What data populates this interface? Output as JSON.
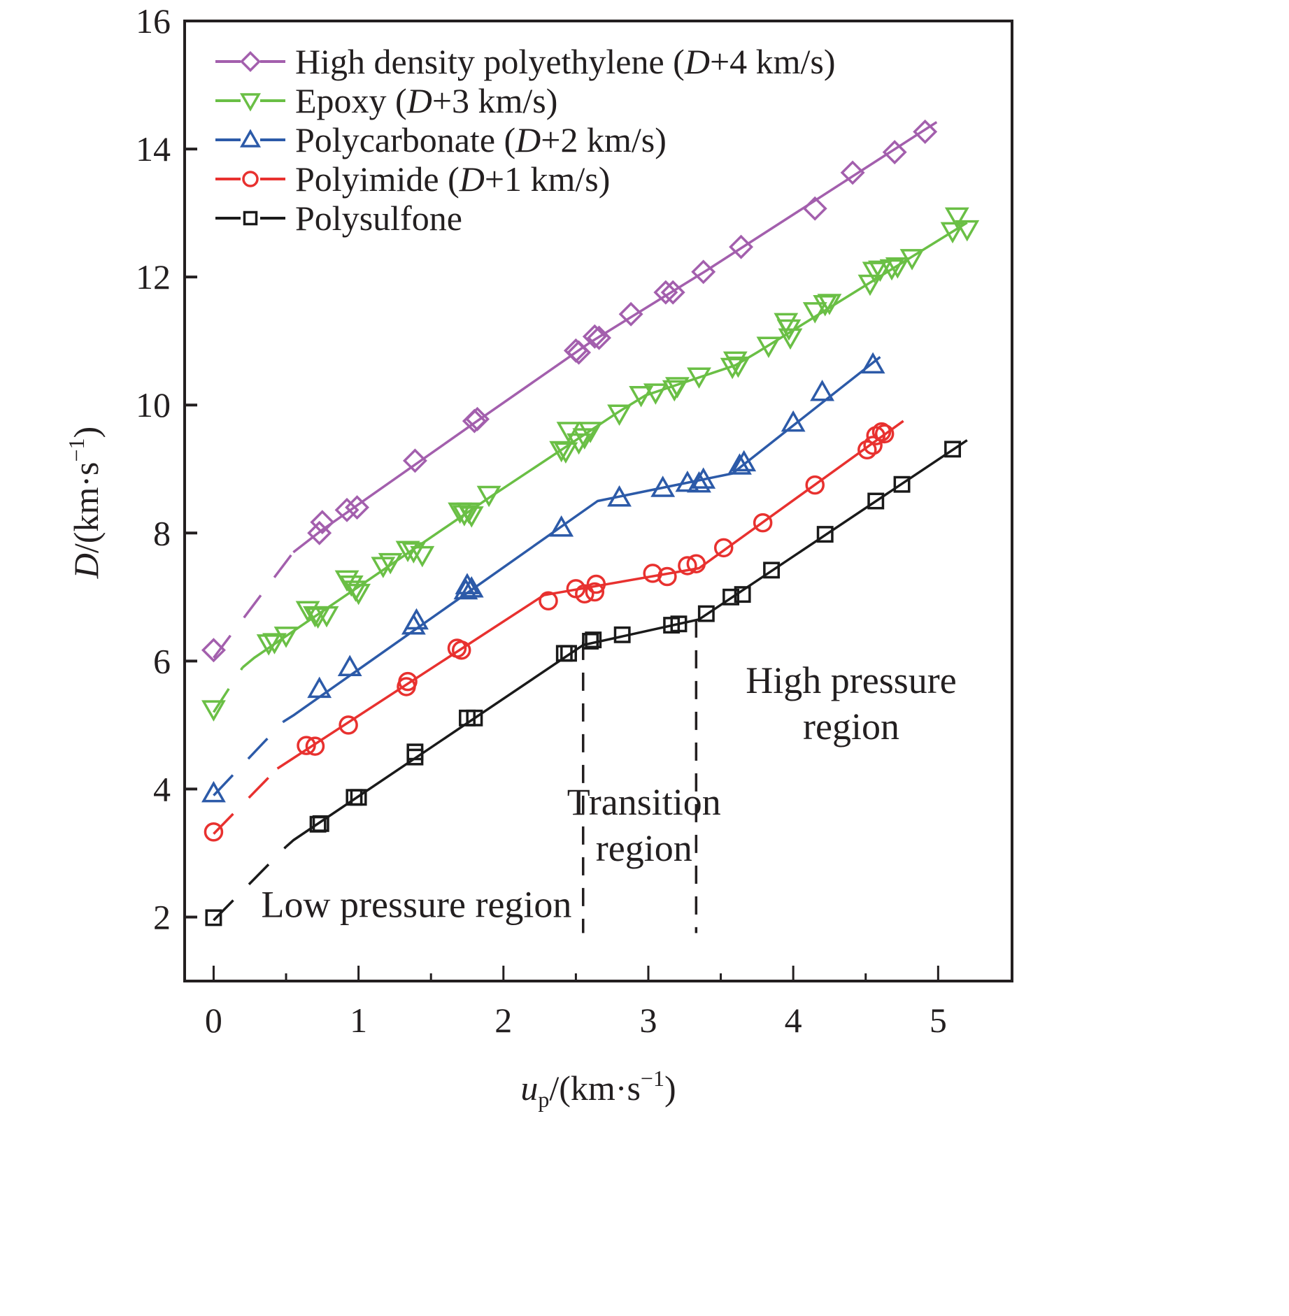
{
  "chart_data": {
    "type": "scatter",
    "title": "",
    "xlabel": "u_p/(km·s^-1)",
    "xlabel_parts": {
      "var": "u",
      "sub": "p",
      "unit": "/(km·s",
      "sup": "−1",
      "close": ")"
    },
    "ylabel": "D/(km·s^-1)",
    "ylabel_parts": {
      "var": "D",
      "unit": "/(km·s",
      "sup": "−1",
      "close": ")"
    },
    "xlim": [
      -0.2,
      5.51
    ],
    "ylim": [
      1.0,
      16.0
    ],
    "x_ticks": [
      0,
      1,
      2,
      3,
      4,
      5
    ],
    "x_tick_labels": [
      "0",
      "1",
      "2",
      "3",
      "4",
      "5"
    ],
    "x_minor_ticks": [
      0.5,
      1.5,
      2.5,
      3.5,
      4.5
    ],
    "y_ticks": [
      2,
      4,
      6,
      8,
      10,
      12,
      14,
      16
    ],
    "y_tick_labels": [
      "2",
      "4",
      "6",
      "8",
      "10",
      "12",
      "14",
      "16"
    ],
    "grid": false,
    "legend_position": "top-left",
    "series": [
      {
        "name": "High density polyethylene (D+4 km/s)",
        "legend_main": "High density polyethylene (",
        "legend_italic": "D",
        "legend_tail": "+4 km/s)",
        "marker": "diamond",
        "color": "#a35fad",
        "offset": 4,
        "points": [
          [
            0,
            6.17
          ],
          [
            0.73,
            8.0
          ],
          [
            0.75,
            8.17
          ],
          [
            0.92,
            8.36
          ],
          [
            0.99,
            8.4
          ],
          [
            1.39,
            9.13
          ],
          [
            1.8,
            9.75
          ],
          [
            1.82,
            9.78
          ],
          [
            2.5,
            10.85
          ],
          [
            2.52,
            10.82
          ],
          [
            2.63,
            11.07
          ],
          [
            2.66,
            11.05
          ],
          [
            2.88,
            11.42
          ],
          [
            3.12,
            11.76
          ],
          [
            3.17,
            11.76
          ],
          [
            3.38,
            12.08
          ],
          [
            3.64,
            12.47
          ],
          [
            4.15,
            13.07
          ],
          [
            4.41,
            13.63
          ],
          [
            4.7,
            13.95
          ],
          [
            4.91,
            14.27
          ]
        ],
        "fit_dashed": [
          [
            0,
            6.05
          ],
          [
            0.55,
            7.7
          ]
        ],
        "fit_solid": [
          [
            0.55,
            7.7
          ],
          [
            0.75,
            8.05
          ],
          [
            1.8,
            9.72
          ],
          [
            2.6,
            10.98
          ],
          [
            3.4,
            12.1
          ],
          [
            4.99,
            14.42
          ]
        ]
      },
      {
        "name": "Epoxy (D+3 km/s)",
        "legend_main": "Epoxy (",
        "legend_italic": "D",
        "legend_tail": "+3 km/s)",
        "marker": "triangle-down",
        "color": "#6abf45",
        "offset": 3,
        "points": [
          [
            0,
            5.25
          ],
          [
            0.38,
            6.28
          ],
          [
            0.42,
            6.3
          ],
          [
            0.5,
            6.4
          ],
          [
            0.65,
            6.8
          ],
          [
            0.7,
            6.72
          ],
          [
            0.72,
            6.7
          ],
          [
            0.78,
            6.72
          ],
          [
            0.92,
            7.28
          ],
          [
            0.95,
            7.2
          ],
          [
            0.98,
            7.12
          ],
          [
            1.0,
            7.07
          ],
          [
            1.17,
            7.49
          ],
          [
            1.22,
            7.55
          ],
          [
            1.34,
            7.74
          ],
          [
            1.38,
            7.72
          ],
          [
            1.44,
            7.66
          ],
          [
            1.7,
            8.34
          ],
          [
            1.73,
            8.3
          ],
          [
            1.76,
            8.34
          ],
          [
            1.78,
            8.28
          ],
          [
            1.9,
            8.6
          ],
          [
            2.4,
            9.3
          ],
          [
            2.43,
            9.28
          ],
          [
            2.45,
            9.6
          ],
          [
            2.52,
            9.42
          ],
          [
            2.56,
            9.5
          ],
          [
            2.6,
            9.6
          ],
          [
            2.8,
            9.87
          ],
          [
            2.95,
            10.16
          ],
          [
            3.05,
            10.2
          ],
          [
            3.18,
            10.25
          ],
          [
            3.2,
            10.3
          ],
          [
            3.35,
            10.45
          ],
          [
            3.58,
            10.6
          ],
          [
            3.6,
            10.7
          ],
          [
            3.62,
            10.62
          ],
          [
            3.83,
            10.93
          ],
          [
            3.95,
            11.3
          ],
          [
            3.97,
            11.2
          ],
          [
            3.98,
            11.06
          ],
          [
            4.15,
            11.47
          ],
          [
            4.22,
            11.58
          ],
          [
            4.25,
            11.6
          ],
          [
            4.53,
            11.9
          ],
          [
            4.56,
            12.1
          ],
          [
            4.6,
            12.12
          ],
          [
            4.68,
            12.14
          ],
          [
            4.72,
            12.17
          ],
          [
            4.82,
            12.3
          ],
          [
            5.1,
            12.72
          ],
          [
            5.13,
            12.95
          ],
          [
            5.2,
            12.75
          ]
        ],
        "fit_dashed": [
          [
            0,
            5.2
          ],
          [
            0.2,
            5.9
          ]
        ],
        "fit_solid": [
          [
            0.2,
            5.9
          ],
          [
            0.28,
            6.05
          ],
          [
            1.9,
            8.55
          ],
          [
            2.8,
            9.9
          ],
          [
            2.98,
            10.15
          ],
          [
            3.6,
            10.62
          ],
          [
            3.75,
            10.82
          ],
          [
            5.2,
            12.85
          ]
        ]
      },
      {
        "name": "Polycarbonate (D+2 km/s)",
        "legend_main": "Polycarbonate (",
        "legend_italic": "D",
        "legend_tail": "+2 km/s)",
        "marker": "triangle-up",
        "color": "#2c5aa8",
        "offset": 2,
        "points": [
          [
            0,
            3.93
          ],
          [
            0.73,
            5.56
          ],
          [
            0.94,
            5.9
          ],
          [
            1.38,
            6.55
          ],
          [
            1.4,
            6.63
          ],
          [
            1.74,
            7.1
          ],
          [
            1.75,
            7.18
          ],
          [
            1.78,
            7.13
          ],
          [
            2.4,
            8.08
          ],
          [
            2.8,
            8.55
          ],
          [
            3.1,
            8.7
          ],
          [
            3.27,
            8.78
          ],
          [
            3.35,
            8.77
          ],
          [
            3.38,
            8.83
          ],
          [
            3.63,
            9.05
          ],
          [
            3.66,
            9.1
          ],
          [
            4.0,
            9.72
          ],
          [
            4.2,
            10.2
          ],
          [
            4.55,
            10.63
          ]
        ],
        "fit_dashed": [
          [
            0,
            3.9
          ],
          [
            0.48,
            5.05
          ]
        ],
        "fit_solid": [
          [
            0.48,
            5.05
          ],
          [
            0.55,
            5.15
          ],
          [
            2.65,
            8.5
          ],
          [
            3.58,
            8.93
          ],
          [
            4.6,
            10.75
          ]
        ]
      },
      {
        "name": "Polyimide (D+1 km/s)",
        "legend_main": "Polyimide (",
        "legend_italic": "D",
        "legend_tail": "+1 km/s)",
        "marker": "circle",
        "color": "#e8312f",
        "offset": 1,
        "points": [
          [
            0,
            3.33
          ],
          [
            0.64,
            4.68
          ],
          [
            0.7,
            4.67
          ],
          [
            0.93,
            5.0
          ],
          [
            1.33,
            5.6
          ],
          [
            1.34,
            5.68
          ],
          [
            1.68,
            6.2
          ],
          [
            1.71,
            6.17
          ],
          [
            2.31,
            6.94
          ],
          [
            2.5,
            7.13
          ],
          [
            2.56,
            7.05
          ],
          [
            2.63,
            7.08
          ],
          [
            2.64,
            7.2
          ],
          [
            3.03,
            7.37
          ],
          [
            3.13,
            7.32
          ],
          [
            3.27,
            7.49
          ],
          [
            3.33,
            7.52
          ],
          [
            3.52,
            7.77
          ],
          [
            3.79,
            8.16
          ],
          [
            4.15,
            8.75
          ],
          [
            4.51,
            9.3
          ],
          [
            4.55,
            9.37
          ],
          [
            4.57,
            9.52
          ],
          [
            4.61,
            9.58
          ],
          [
            4.63,
            9.55
          ]
        ],
        "fit_dashed": [
          [
            0,
            3.3
          ],
          [
            0.44,
            4.32
          ]
        ],
        "fit_solid": [
          [
            0.44,
            4.32
          ],
          [
            2.28,
            7.03
          ],
          [
            3.35,
            7.45
          ],
          [
            4.76,
            9.75
          ]
        ]
      },
      {
        "name": "Polysulfone",
        "legend_main": "Polysulfone",
        "legend_italic": "",
        "legend_tail": "",
        "marker": "square",
        "color": "#1a1a1a",
        "offset": 0,
        "points": [
          [
            0,
            1.99
          ],
          [
            0.72,
            3.45
          ],
          [
            0.74,
            3.46
          ],
          [
            0.97,
            3.87
          ],
          [
            1.0,
            3.87
          ],
          [
            1.39,
            4.5
          ],
          [
            1.39,
            4.58
          ],
          [
            1.75,
            5.11
          ],
          [
            1.8,
            5.11
          ],
          [
            2.42,
            6.12
          ],
          [
            2.45,
            6.12
          ],
          [
            2.6,
            6.31
          ],
          [
            2.62,
            6.33
          ],
          [
            2.82,
            6.41
          ],
          [
            3.16,
            6.56
          ],
          [
            3.21,
            6.58
          ],
          [
            3.4,
            6.74
          ],
          [
            3.57,
            7.0
          ],
          [
            3.65,
            7.04
          ],
          [
            3.85,
            7.42
          ],
          [
            4.22,
            7.98
          ],
          [
            4.57,
            8.5
          ],
          [
            4.75,
            8.76
          ],
          [
            5.1,
            9.31
          ]
        ],
        "fit_dashed": [
          [
            0,
            1.95
          ],
          [
            0.5,
            3.1
          ]
        ],
        "fit_solid": [
          [
            0.5,
            3.1
          ],
          [
            0.55,
            3.2
          ],
          [
            2.55,
            6.25
          ],
          [
            3.35,
            6.65
          ],
          [
            5.2,
            9.45
          ]
        ]
      }
    ],
    "region_boundaries_x": [
      2.55,
      3.33
    ],
    "annotations": [
      {
        "name": "low-pressure",
        "lines": [
          "Low pressure region"
        ],
        "x": 1.4,
        "y": 2.0
      },
      {
        "name": "transition",
        "lines": [
          "Transition",
          "region"
        ],
        "x": 2.97,
        "y": 3.6
      },
      {
        "name": "high-pressure",
        "lines": [
          "High pressure",
          "region"
        ],
        "x": 4.4,
        "y": 5.5
      }
    ]
  }
}
